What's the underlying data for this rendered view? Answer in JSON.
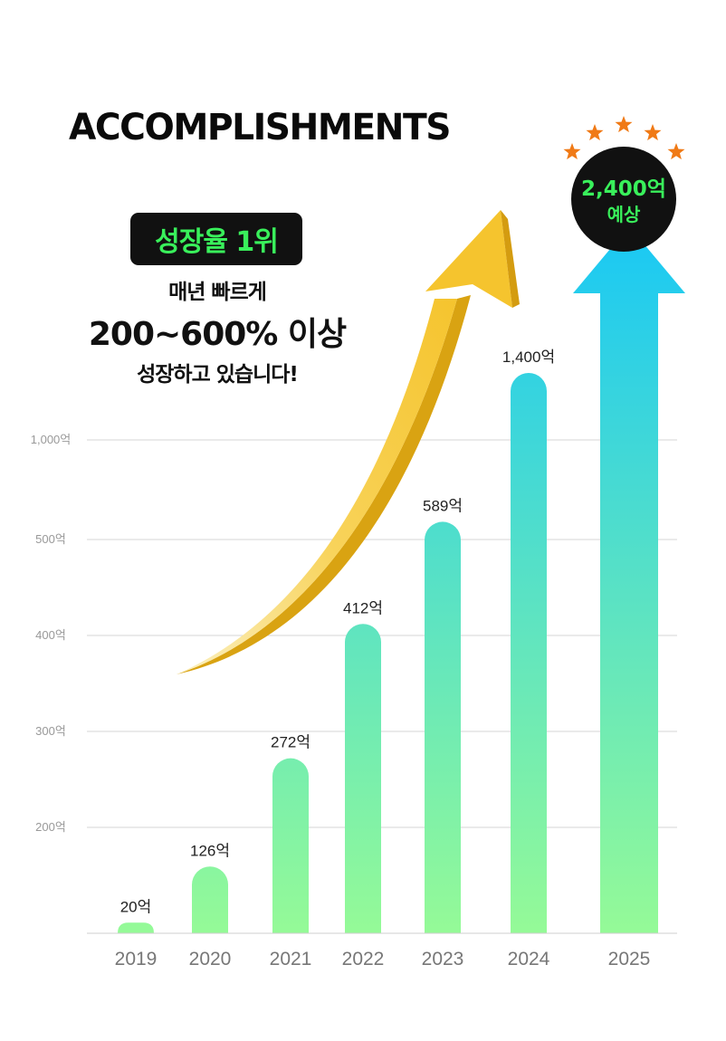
{
  "header": {
    "title": "ACCOMPLISHMENTS",
    "badge": "성장율 1위",
    "line1": "매년 빠르게",
    "line2": "200~600% 이상",
    "line3": "성장하고 있습니다!"
  },
  "colors": {
    "bar_top": "#19c8f5",
    "bar_bottom": "#95fa97",
    "arrow": "#f5c42e",
    "badge_bg": "#111111",
    "badge_text": "#39f05b",
    "star": "#f07a16"
  },
  "chart_data": {
    "type": "bar",
    "categories": [
      "2019",
      "2020",
      "2021",
      "2022",
      "2023",
      "2024",
      "2025"
    ],
    "values": [
      20,
      126,
      272,
      412,
      589,
      1400,
      2400
    ],
    "value_labels": [
      "20억",
      "126억",
      "272억",
      "412억",
      "589억",
      "1,400억",
      ""
    ],
    "yticks": [
      {
        "value": 200,
        "label": "200억"
      },
      {
        "value": 300,
        "label": "300억"
      },
      {
        "value": 400,
        "label": "400억"
      },
      {
        "value": 500,
        "label": "500억"
      },
      {
        "value": 1000,
        "label": "1,000억"
      }
    ],
    "y_scale": "broken",
    "grid": true,
    "forecast": {
      "category": "2025",
      "value": 2400,
      "label_line1": "2,400억",
      "label_line2": "예상"
    }
  }
}
